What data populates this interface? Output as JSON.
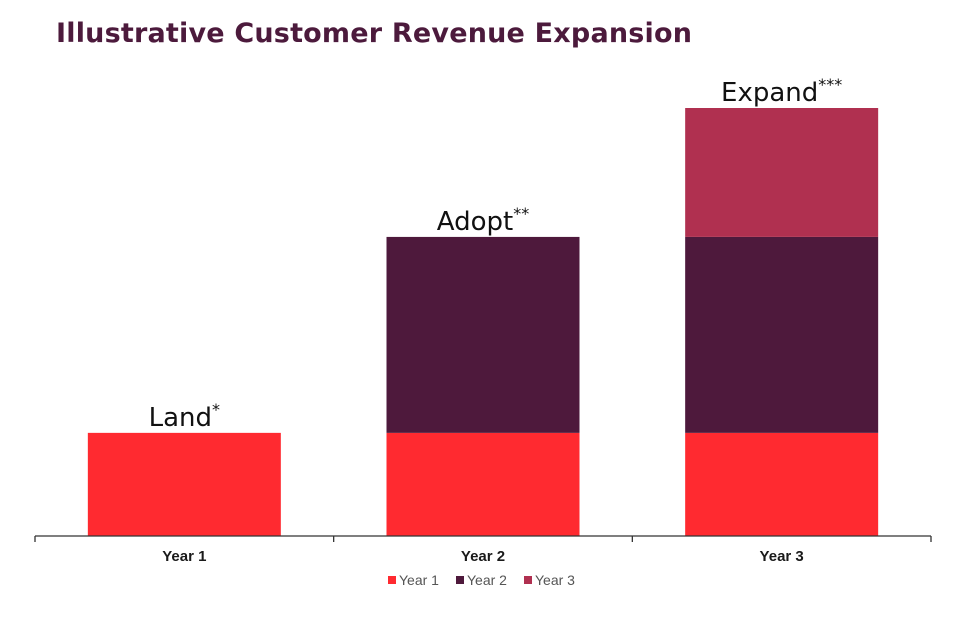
{
  "title": "Illustrative Customer Revenue Expansion",
  "chart_data": {
    "type": "bar",
    "stacked": true,
    "categories": [
      "Year 1",
      "Year 2",
      "Year 3"
    ],
    "series": [
      {
        "name": "Year 1",
        "values": [
          1,
          1,
          1
        ],
        "color": "#ff2a30"
      },
      {
        "name": "Year 2",
        "values": [
          0,
          1.9,
          1.9
        ],
        "color": "#4e193c"
      },
      {
        "name": "Year 3",
        "values": [
          0,
          0,
          1.25
        ],
        "color": "#b03050"
      }
    ],
    "bar_labels": [
      {
        "text": "Land",
        "sup": "*"
      },
      {
        "text": "Adopt",
        "sup": "**"
      },
      {
        "text": "Expand",
        "sup": "***"
      }
    ],
    "legend_position": "bottom",
    "grid": false
  }
}
